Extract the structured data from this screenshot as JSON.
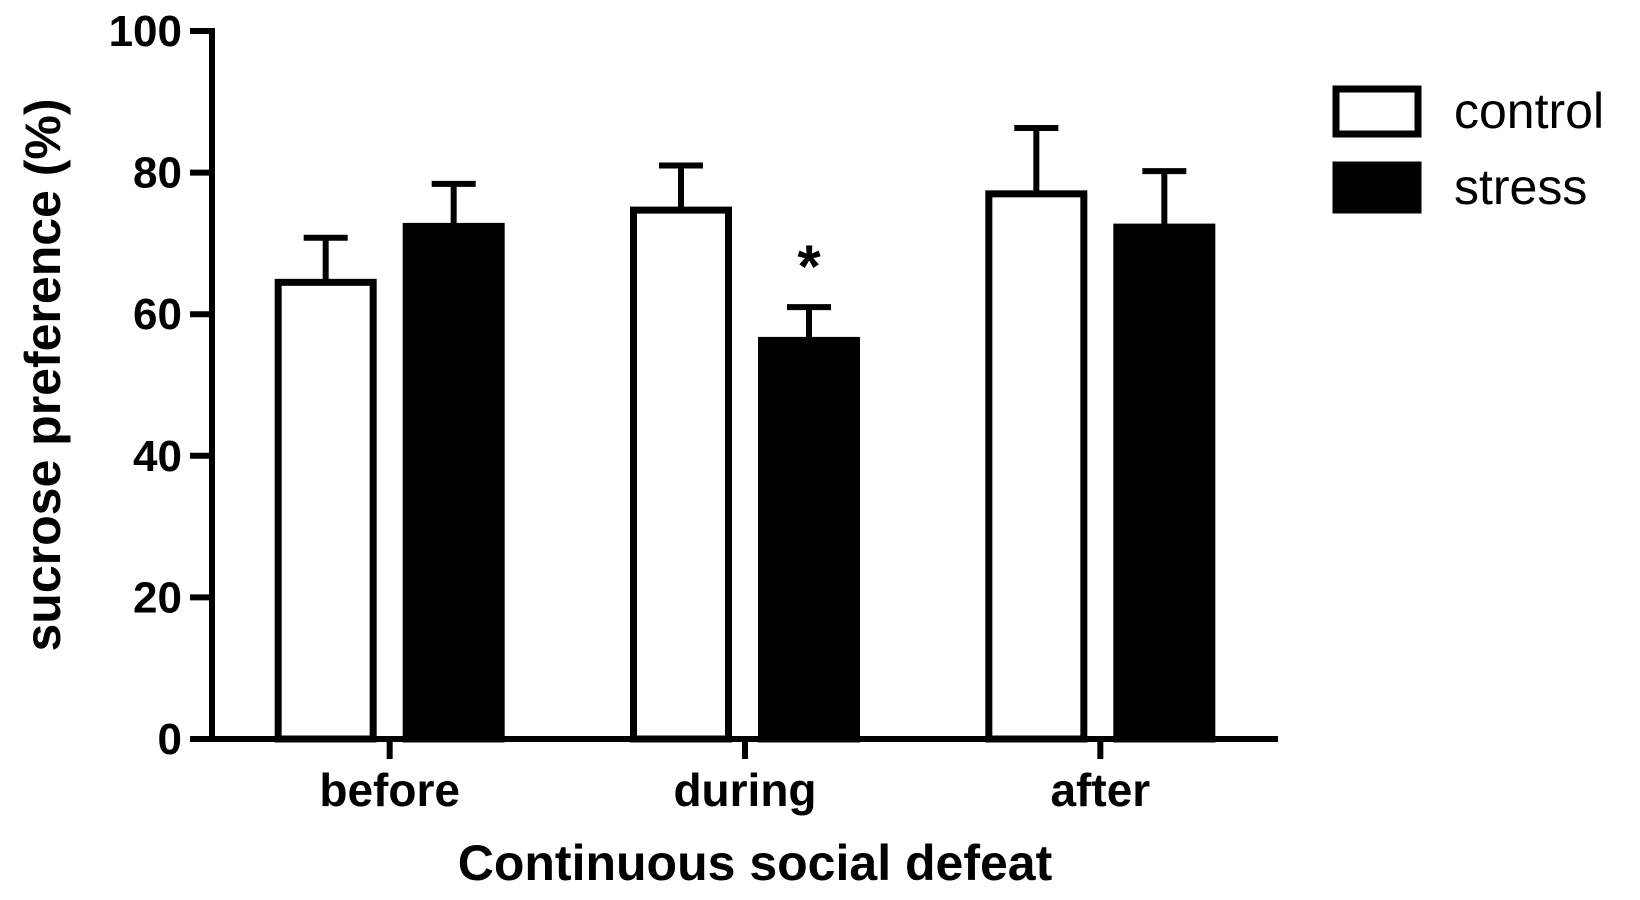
{
  "chart_data": {
    "type": "bar",
    "title": "",
    "xlabel": "Continuous social defeat",
    "ylabel": "sucrose preference (%)",
    "ylim": [
      0,
      100
    ],
    "yticks": [
      "0",
      "20",
      "40",
      "60",
      "80",
      "100"
    ],
    "categories": [
      "before",
      "during",
      "after"
    ],
    "series": [
      {
        "name": "control",
        "values": [
          64.5,
          74.7,
          77.0
        ],
        "errors": [
          6.3,
          6.3,
          9.3
        ],
        "color": "#ffffff"
      },
      {
        "name": "stress",
        "values": [
          72.4,
          56.3,
          72.3
        ],
        "errors": [
          6.0,
          4.7,
          7.9
        ],
        "color": "#000000"
      }
    ],
    "annotations": [
      {
        "text": "*",
        "category": "during",
        "series": "stress"
      }
    ],
    "legend_position": "top-right",
    "grid": false
  }
}
